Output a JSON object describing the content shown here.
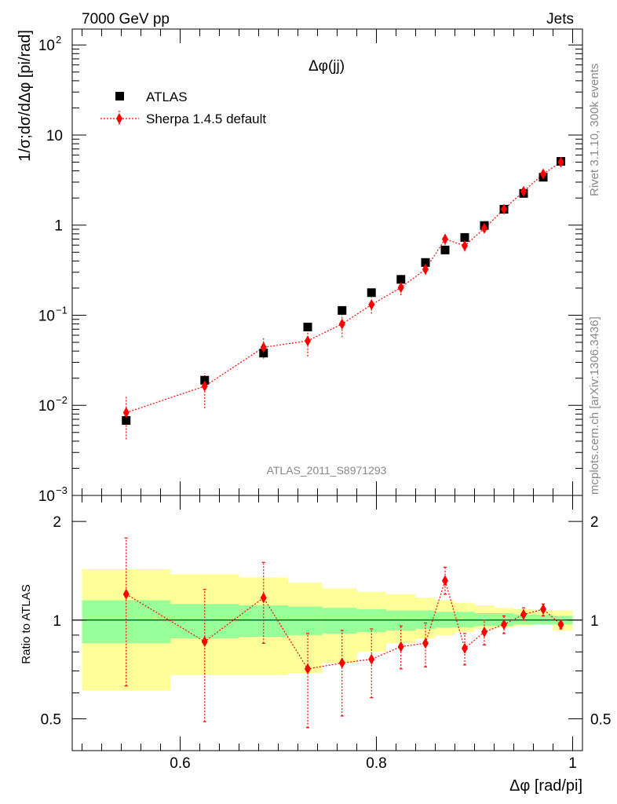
{
  "header": {
    "left": "7000 GeV pp",
    "right": "Jets"
  },
  "side": {
    "top": "Rivet 3.1.10,  300k events",
    "bottom": "mcplots.cern.ch [arXiv:1306.3436]"
  },
  "colors": {
    "atlas": "#000000",
    "sherpa": "#ff0000",
    "band_inner": "#99ff99",
    "band_outer": "#ffff99"
  },
  "chart_data": [
    {
      "type": "scatter",
      "title": "Δφ(jj)",
      "xlabel": "Δφ [rad/pi]",
      "ylabel": "1/σ;dσ/dΔφ [pi/rad]",
      "xlim": [
        0.49,
        1.01
      ],
      "ylim": [
        0.001,
        150
      ],
      "yscale": "log",
      "yticks": [
        {
          "value": 0.001,
          "base": "10",
          "exp": "−3"
        },
        {
          "value": 0.01,
          "base": "10",
          "exp": "−2"
        },
        {
          "value": 0.1,
          "base": "10",
          "exp": "−1"
        },
        {
          "value": 1,
          "base": "1",
          "exp": ""
        },
        {
          "value": 10,
          "base": "10",
          "exp": ""
        },
        {
          "value": 100,
          "base": "10",
          "exp": "2"
        }
      ],
      "watermark": "ATLAS_2011_S8971293",
      "series": [
        {
          "name": "ATLAS",
          "x": [
            0.545,
            0.625,
            0.685,
            0.73,
            0.765,
            0.795,
            0.825,
            0.85,
            0.87,
            0.89,
            0.91,
            0.93,
            0.95,
            0.97,
            0.988
          ],
          "values": [
            0.0068,
            0.019,
            0.038,
            0.074,
            0.113,
            0.178,
            0.25,
            0.385,
            0.53,
            0.73,
            0.99,
            1.5,
            2.25,
            3.4,
            5.1
          ]
        },
        {
          "name": "Sherpa 1.4.5 default",
          "x": [
            0.545,
            0.625,
            0.685,
            0.73,
            0.765,
            0.795,
            0.825,
            0.85,
            0.87,
            0.89,
            0.91,
            0.93,
            0.95,
            0.97,
            0.988
          ],
          "values": [
            0.0083,
            0.0163,
            0.044,
            0.052,
            0.08,
            0.131,
            0.203,
            0.323,
            0.7,
            0.59,
            0.92,
            1.5,
            2.37,
            3.7,
            5.0
          ],
          "err_low": [
            0.0042,
            0.0093,
            0.033,
            0.035,
            0.057,
            0.104,
            0.167,
            0.28,
            0.6,
            0.51,
            0.83,
            1.4,
            2.25,
            3.5,
            4.75
          ],
          "err_high": [
            0.0124,
            0.0228,
            0.058,
            0.067,
            0.105,
            0.158,
            0.24,
            0.37,
            0.8,
            0.67,
            1.01,
            1.6,
            2.5,
            3.9,
            5.25
          ]
        }
      ]
    },
    {
      "type": "scatter",
      "title": "",
      "xlabel": "Δφ [rad/pi]",
      "ylabel": "Ratio to ATLAS",
      "xlim": [
        0.49,
        1.01
      ],
      "ylim": [
        0.4,
        2.4
      ],
      "yscale": "log",
      "xticks": [
        "0.6",
        "0.8",
        "1"
      ],
      "yticks": [
        "0.5",
        "1",
        "2"
      ],
      "bands": {
        "edges": [
          0.5,
          0.59,
          0.66,
          0.71,
          0.745,
          0.78,
          0.81,
          0.84,
          0.86,
          0.88,
          0.9,
          0.92,
          0.94,
          0.96,
          0.98,
          1.0
        ],
        "outer_low": [
          0.61,
          0.68,
          0.68,
          0.69,
          0.74,
          0.8,
          0.85,
          0.88,
          0.9,
          0.92,
          0.94,
          0.95,
          0.96,
          0.97,
          0.93
        ],
        "outer_high": [
          1.43,
          1.38,
          1.35,
          1.3,
          1.25,
          1.22,
          1.2,
          1.17,
          1.15,
          1.13,
          1.11,
          1.09,
          1.08,
          1.07,
          1.07
        ],
        "inner_low": [
          0.85,
          0.88,
          0.89,
          0.9,
          0.91,
          0.92,
          0.93,
          0.94,
          0.95,
          0.95,
          0.96,
          0.96,
          0.97,
          0.97,
          0.97
        ],
        "inner_high": [
          1.15,
          1.12,
          1.11,
          1.1,
          1.09,
          1.08,
          1.07,
          1.07,
          1.06,
          1.06,
          1.05,
          1.05,
          1.04,
          1.04,
          1.03
        ]
      },
      "series": [
        {
          "name": "Sherpa 1.4.5 default / ATLAS",
          "x": [
            0.545,
            0.625,
            0.685,
            0.73,
            0.765,
            0.795,
            0.825,
            0.85,
            0.87,
            0.89,
            0.91,
            0.93,
            0.95,
            0.97,
            0.988
          ],
          "values": [
            1.2,
            0.86,
            1.17,
            0.71,
            0.74,
            0.76,
            0.83,
            0.85,
            1.32,
            0.82,
            0.92,
            0.97,
            1.04,
            1.08,
            0.97
          ],
          "err_low": [
            0.63,
            0.49,
            0.85,
            0.47,
            0.51,
            0.58,
            0.71,
            0.72,
            1.2,
            0.73,
            0.84,
            0.91,
            1.0,
            1.03,
            0.94
          ],
          "err_high": [
            1.78,
            1.24,
            1.5,
            0.91,
            0.93,
            0.94,
            0.96,
            0.98,
            1.45,
            0.91,
            1.0,
            1.03,
            1.09,
            1.12,
            1.0
          ]
        }
      ]
    }
  ]
}
